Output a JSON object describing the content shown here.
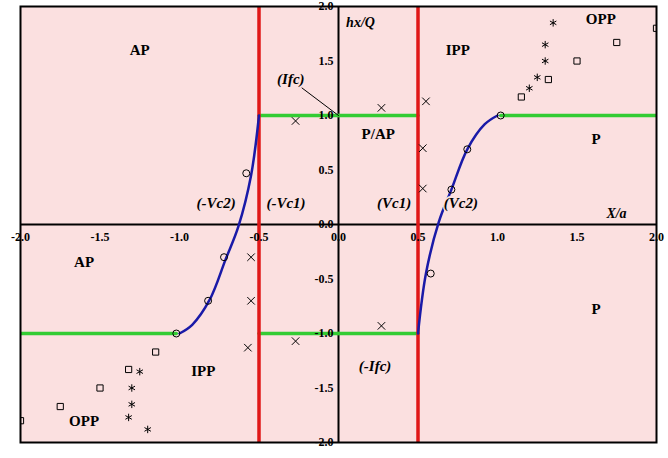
{
  "chart_data": {
    "type": "scatter",
    "x_label": "X/a",
    "y_label": "hx/Q",
    "xlim": [
      -2,
      2
    ],
    "ylim": [
      -2,
      2
    ],
    "xticks": [
      {
        "value": -2,
        "label": "-2.0"
      },
      {
        "value": -1.5,
        "label": "-1.5"
      },
      {
        "value": -1,
        "label": "-1.0"
      },
      {
        "value": -0.5,
        "label": "-0.5"
      },
      {
        "value": 0,
        "label": "0.0"
      },
      {
        "value": 0.5,
        "label": "0.5"
      },
      {
        "value": 1,
        "label": "1.0"
      },
      {
        "value": 1.5,
        "label": "1.5"
      },
      {
        "value": 2,
        "label": "2.0"
      }
    ],
    "yticks": [
      {
        "value": -2,
        "label": "-2.0"
      },
      {
        "value": -1.5,
        "label": "-1.5"
      },
      {
        "value": -1,
        "label": "-1.0"
      },
      {
        "value": -0.5,
        "label": "-0.5"
      },
      {
        "value": 0,
        "label": "0.0"
      },
      {
        "value": 0.5,
        "label": "0.5"
      },
      {
        "value": 1,
        "label": "1.0"
      },
      {
        "value": 1.5,
        "label": "1.5"
      },
      {
        "value": 2,
        "label": "2.0"
      }
    ],
    "grid": false,
    "series": [
      {
        "type": "line",
        "color": "#33cc33",
        "line_style": "solid",
        "x": [
          0,
          0.5
        ],
        "values": [
          1,
          1
        ]
      },
      {
        "type": "line",
        "color": "#33cc33",
        "line_style": "solid",
        "x": [
          1.02,
          2
        ],
        "values": [
          1,
          1
        ]
      },
      {
        "type": "line",
        "color": "#33cc33",
        "line_style": "solid",
        "x": [
          0,
          0.5
        ],
        "values": [
          -1,
          -1
        ]
      },
      {
        "type": "line",
        "color": "#33cc33",
        "line_style": "solid",
        "x": [
          -0.5,
          0
        ],
        "values": [
          1,
          1
        ]
      },
      {
        "type": "line",
        "color": "#33cc33",
        "line_style": "solid",
        "x": [
          -0.5,
          0
        ],
        "values": [
          -1,
          -1
        ]
      },
      {
        "type": "line",
        "color": "#33cc33",
        "line_style": "solid",
        "x": [
          -2,
          -1.02
        ],
        "values": [
          -1,
          -1
        ]
      },
      {
        "type": "line",
        "color": "#e01818",
        "line_style": "solid",
        "x": [
          0.5,
          0.5
        ],
        "values": [
          -2,
          2
        ]
      },
      {
        "type": "line",
        "color": "#e01818",
        "line_style": "solid",
        "x": [
          -0.5,
          -0.5
        ],
        "values": [
          -2,
          2
        ]
      },
      {
        "type": "line",
        "color": "#1a1aa8",
        "line_style": "solid",
        "x": [
          0.5,
          0.55,
          0.63,
          0.71,
          0.81,
          0.92,
          1.0
        ],
        "values": [
          -1,
          -0.45,
          0.02,
          0.32,
          0.69,
          0.92,
          1.0
        ]
      },
      {
        "type": "line",
        "color": "#1a1aa8",
        "line_style": "solid",
        "x": [
          -0.5,
          -0.55,
          -0.63,
          -0.71,
          -0.81,
          -0.92,
          -1.0
        ],
        "values": [
          1,
          0.45,
          -0.02,
          -0.32,
          -0.69,
          -0.92,
          -1.0
        ]
      },
      {
        "type": "scatter",
        "color": "#000000",
        "marker": "circle",
        "x": [
          0.58,
          0.71,
          0.81,
          1.02,
          -0.58,
          -0.72,
          -0.82,
          -1.02
        ],
        "values": [
          -0.45,
          0.32,
          0.69,
          1.0,
          0.47,
          -0.3,
          -0.7,
          -1.0
        ]
      },
      {
        "type": "scatter",
        "color": "#000000",
        "marker": "x",
        "x": [
          0.27,
          0.55,
          0.53,
          0.53,
          0.27,
          -0.27,
          -0.55,
          -0.55,
          -0.57,
          -0.27
        ],
        "values": [
          1.07,
          1.13,
          0.7,
          0.33,
          -0.93,
          0.95,
          -0.3,
          -0.7,
          -1.13,
          -1.07
        ]
      },
      {
        "type": "scatter",
        "color": "#000000",
        "marker": "star",
        "x": [
          1.35,
          1.3,
          1.3,
          1.25,
          1.2,
          -1.25,
          -1.3,
          -1.3,
          -1.32,
          -1.2
        ],
        "values": [
          1.85,
          1.65,
          1.5,
          1.35,
          1.25,
          -1.35,
          -1.5,
          -1.65,
          -1.77,
          -1.88
        ]
      },
      {
        "type": "scatter",
        "color": "#000000",
        "marker": "square",
        "x": [
          1.15,
          1.32,
          1.5,
          1.75,
          2.0,
          -1.15,
          -1.32,
          -1.5,
          -1.75,
          -2.0
        ],
        "values": [
          1.17,
          1.33,
          1.5,
          1.67,
          1.8,
          -1.17,
          -1.33,
          -1.5,
          -1.67,
          -1.8
        ]
      }
    ],
    "region_labels": [
      {
        "text": "AP",
        "x": -1.25,
        "y": 1.6
      },
      {
        "text": "AP",
        "x": -1.6,
        "y": -0.35
      },
      {
        "text": "IPP",
        "x": -0.85,
        "y": -1.35
      },
      {
        "text": "OPP",
        "x": -1.6,
        "y": -1.8
      },
      {
        "text": "P/AP",
        "x": 0.25,
        "y": 0.83
      },
      {
        "text": "IPP",
        "x": 0.75,
        "y": 1.6
      },
      {
        "text": "OPP",
        "x": 1.65,
        "y": 1.88
      },
      {
        "text": "P",
        "x": 1.62,
        "y": 0.78
      },
      {
        "text": "P",
        "x": 1.62,
        "y": -0.78
      }
    ],
    "annotations": [
      {
        "text": "(Ifc)",
        "x": -0.3,
        "y": 1.33,
        "arrow_to": [
          0,
          1
        ]
      },
      {
        "text": "(-Vc2)",
        "x": -0.77,
        "y": 0.2
      },
      {
        "text": "(-Vc1)",
        "x": -0.33,
        "y": 0.2
      },
      {
        "text": "(Vc1)",
        "x": 0.35,
        "y": 0.2
      },
      {
        "text": "(Vc2)",
        "x": 0.77,
        "y": 0.2
      },
      {
        "text": "(-Ifc)",
        "x": 0.23,
        "y": -1.3
      }
    ]
  }
}
